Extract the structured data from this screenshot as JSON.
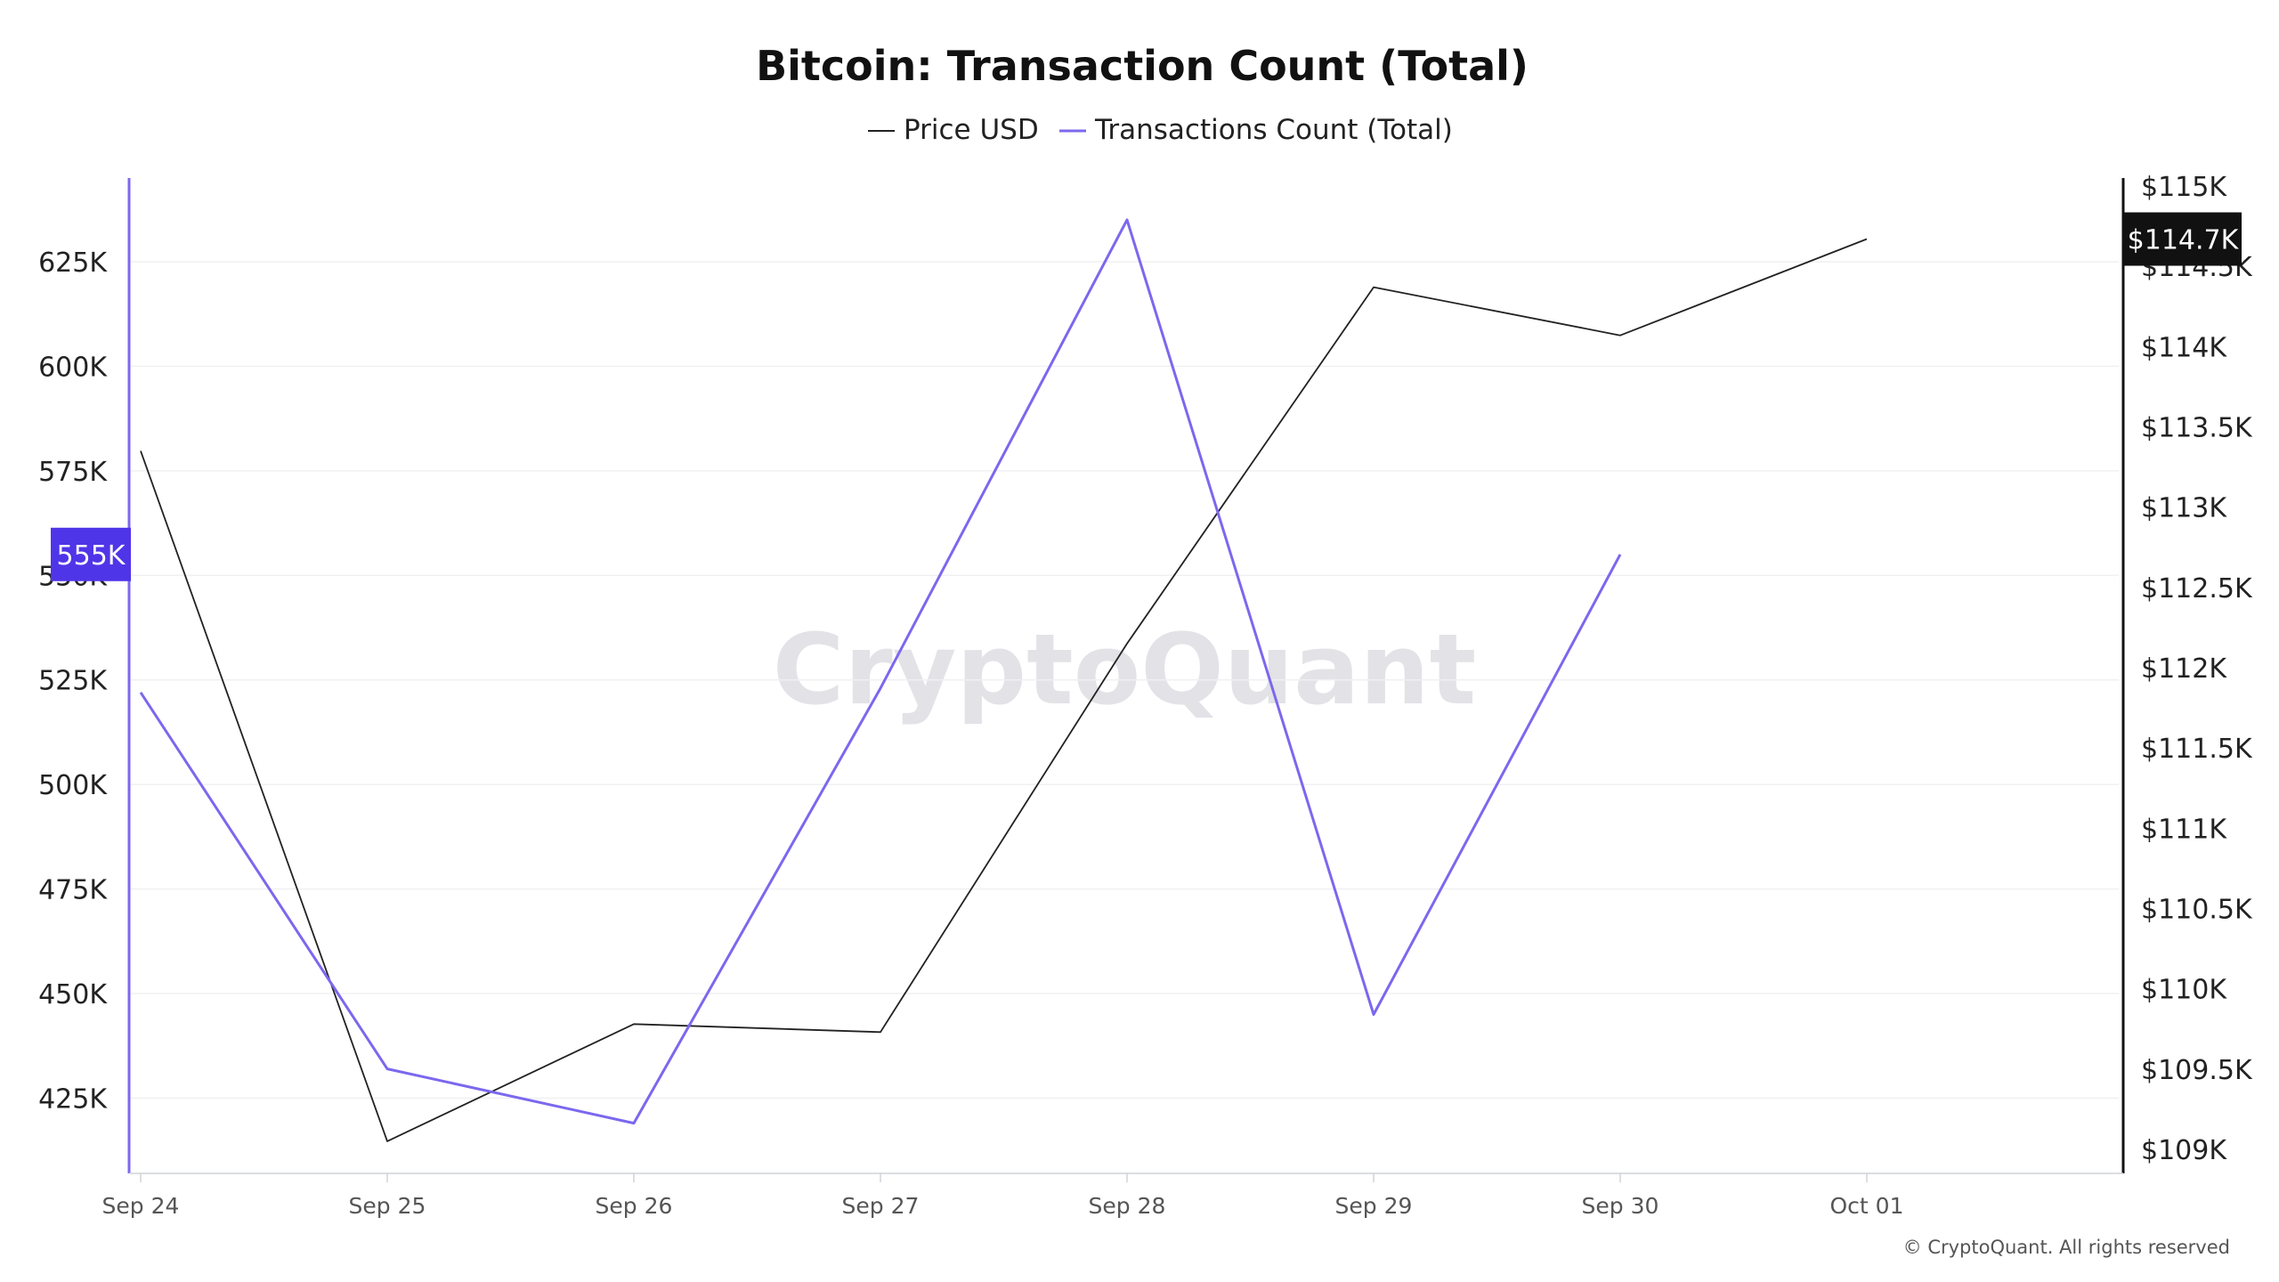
{
  "chart_data": {
    "type": "line",
    "title": "Bitcoin: Transaction Count (Total)",
    "x": [
      "Sep 24",
      "Sep 25",
      "Sep 26",
      "Sep 27",
      "Sep 28",
      "Sep 29",
      "Sep 30",
      "Oct 01"
    ],
    "series": [
      {
        "name": "Price USD",
        "axis": "right",
        "color": "#222222",
        "values": [
          113.35,
          109.05,
          109.78,
          109.73,
          112.15,
          114.37,
          114.07,
          114.67
        ]
      },
      {
        "name": "Transactions Count (Total)",
        "axis": "left",
        "color": "#7b68ee",
        "values": [
          522,
          432,
          419,
          523,
          635,
          445,
          555,
          null
        ]
      }
    ],
    "left_axis": {
      "ticks": [
        "425K",
        "450K",
        "475K",
        "500K",
        "525K",
        "550K",
        "575K",
        "600K",
        "625K"
      ],
      "ylim": [
        407,
        645
      ],
      "color": "#7b68ee"
    },
    "right_axis": {
      "ticks": [
        "$109K",
        "$109.5K",
        "$110K",
        "$110.5K",
        "$111K",
        "$111.5K",
        "$112K",
        "$112.5K",
        "$113K",
        "$113.5K",
        "$114K",
        "$114.5K",
        "$115K"
      ],
      "ylim": [
        108.85,
        115.05
      ],
      "color": "#111111"
    },
    "last_value_badges": {
      "left": "555K",
      "right": "$114.7K",
      "left_color": "#4f35e8",
      "right_color": "#111111"
    },
    "legend_position": "top-center",
    "grid": true
  },
  "watermark": "CryptoQuant",
  "copyright": "© CryptoQuant. All rights reserved"
}
